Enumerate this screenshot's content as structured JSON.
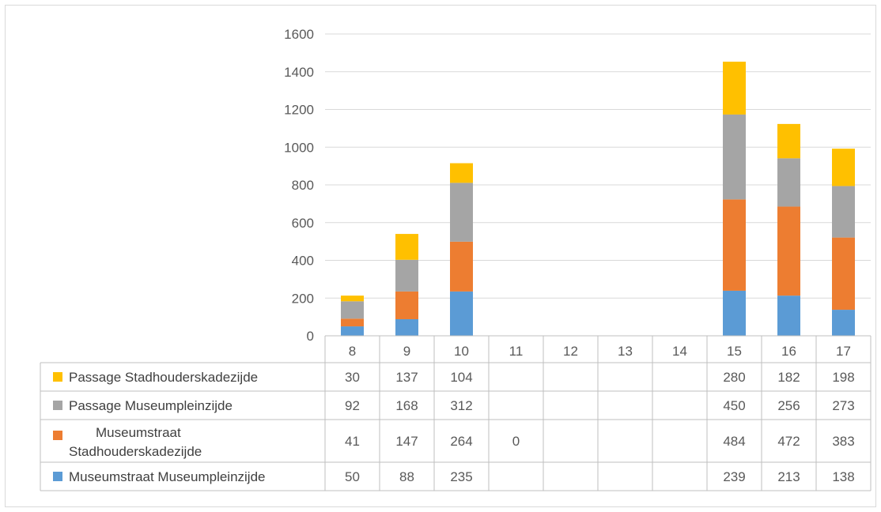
{
  "chart_data": {
    "type": "bar",
    "stacked": true,
    "categories": [
      "8",
      "9",
      "10",
      "11",
      "12",
      "13",
      "14",
      "15",
      "16",
      "17"
    ],
    "ylim": [
      0,
      1600
    ],
    "yticks": [
      "0",
      "200",
      "400",
      "600",
      "800",
      "1000",
      "1200",
      "1400",
      "1600"
    ],
    "grid": true,
    "legend": "data-table-left",
    "series": [
      {
        "name": "Museumstraat Museumpleinzijde",
        "color": "#5b9bd5",
        "values": [
          50,
          88,
          235,
          null,
          null,
          null,
          null,
          239,
          213,
          138
        ],
        "labels": [
          "50",
          "88",
          "235",
          "",
          "",
          "",
          "",
          "239",
          "213",
          "138"
        ]
      },
      {
        "name": "Museumstraat Stadhouderskadezijde",
        "color": "#ed7d31",
        "values": [
          41,
          147,
          264,
          0,
          null,
          null,
          null,
          484,
          472,
          383
        ],
        "labels": [
          "41",
          "147",
          "264",
          "0",
          "",
          "",
          "",
          "484",
          "472",
          "383"
        ]
      },
      {
        "name": "Passage Museumpleinzijde",
        "color": "#a5a5a5",
        "values": [
          92,
          168,
          312,
          null,
          null,
          null,
          null,
          450,
          256,
          273
        ],
        "labels": [
          "92",
          "168",
          "312",
          "",
          "",
          "",
          "",
          "450",
          "256",
          "273"
        ]
      },
      {
        "name": "Passage Stadhouderskadezijde",
        "color": "#ffc000",
        "values": [
          30,
          137,
          104,
          null,
          null,
          null,
          null,
          280,
          182,
          198
        ],
        "labels": [
          "30",
          "137",
          "104",
          "",
          "",
          "",
          "",
          "280",
          "182",
          "198"
        ]
      }
    ],
    "table_rows_order": [
      3,
      2,
      1,
      0
    ]
  }
}
